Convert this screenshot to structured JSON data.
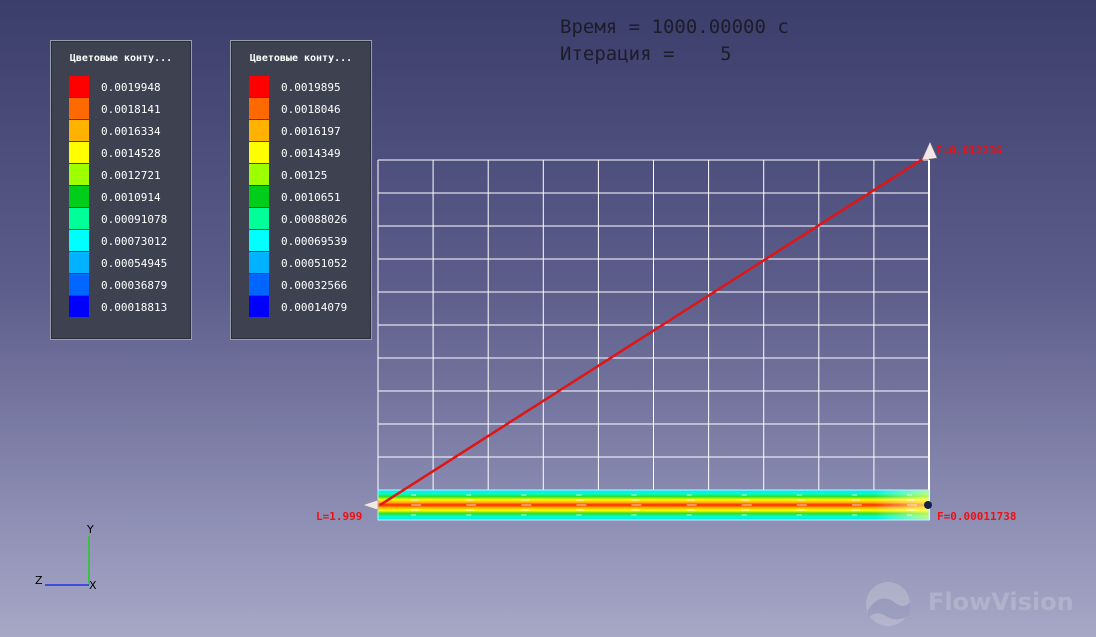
{
  "overlay": {
    "time_line": "Время = 1000.00000 с",
    "iteration_line": "Итерация =    5"
  },
  "legend_left": {
    "title": "Цветовые конту...",
    "values": [
      "0.0019948",
      "0.0018141",
      "0.0016334",
      "0.0014528",
      "0.0012721",
      "0.0010914",
      "0.00091078",
      "0.00073012",
      "0.00054945",
      "0.00036879",
      "0.00018813"
    ]
  },
  "legend_right": {
    "title": "Цветовые конту...",
    "values": [
      "0.0019895",
      "0.0018046",
      "0.0016197",
      "0.0014349",
      "0.00125",
      "0.0010651",
      "0.00088026",
      "0.00069539",
      "0.00051052",
      "0.00032566",
      "0.00014079"
    ]
  },
  "legend_colors": [
    "#ff0000",
    "#ff6a00",
    "#ffb300",
    "#ffff00",
    "#9dff00",
    "#00cc1a",
    "#00ff99",
    "#00ffff",
    "#00b2ff",
    "#0066ff",
    "#0000ff"
  ],
  "plot": {
    "label_start": "L=1.999",
    "label_top_end": "F=0.012236",
    "label_bottom_end": "F=0.00011738",
    "line_color": "#e01515"
  },
  "axes": {
    "y": "Y",
    "z": "Z",
    "x": "X"
  },
  "logo": {
    "text": "FlowVision"
  }
}
